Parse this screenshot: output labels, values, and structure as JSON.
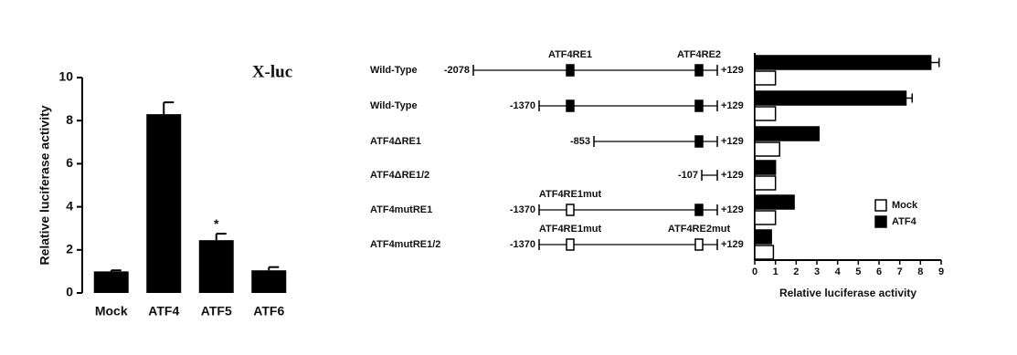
{
  "chart_data": [
    {
      "type": "bar",
      "annotation_label": "X-luc",
      "ylabel": "Relative luciferase activity",
      "categories": [
        "Mock",
        "ATF4",
        "ATF5",
        "ATF6"
      ],
      "values": [
        1.0,
        8.3,
        2.45,
        1.05
      ],
      "errors": [
        0.05,
        0.55,
        0.3,
        0.15
      ],
      "significance": {
        "text": "*",
        "category": "ATF5"
      },
      "color": "#000000",
      "ylim": [
        0,
        10
      ],
      "yticks": [
        0,
        2,
        4,
        6,
        8,
        10
      ]
    },
    {
      "type": "hbar",
      "xlabel": "Relative luciferase activity",
      "categories": [
        "Wild-Type",
        "Wild-Type",
        "ATF4ΔRE1",
        "ATF4ΔRE1/2",
        "ATF4mutRE1",
        "ATF4mutRE1/2"
      ],
      "series": [
        {
          "name": "Mock",
          "color": "#ffffff",
          "values": [
            1.0,
            1.0,
            1.2,
            1.0,
            1.0,
            0.9
          ]
        },
        {
          "name": "ATF4",
          "color": "#000000",
          "values": [
            8.5,
            7.3,
            3.1,
            1.0,
            1.9,
            0.8
          ],
          "errors": [
            0.4,
            0.3,
            0,
            0,
            0,
            0
          ]
        }
      ],
      "xlim": [
        0,
        9
      ],
      "xticks": [
        0,
        1,
        2,
        3,
        4,
        5,
        6,
        7,
        8,
        9
      ],
      "legend": "lower right",
      "constructs": [
        {
          "start": "-2078",
          "end": "+129",
          "re1": "filled",
          "re2": "filled",
          "re1_label": "ATF4RE1",
          "re2_label": "ATF4RE2"
        },
        {
          "start": "-1370",
          "end": "+129",
          "re1": "filled",
          "re2": "filled"
        },
        {
          "start": "-853",
          "end": "+129",
          "re1": null,
          "re2": "filled"
        },
        {
          "start": "-107",
          "end": "+129",
          "re1": null,
          "re2": null
        },
        {
          "start": "-1370",
          "end": "+129",
          "re1": "open",
          "re2": "filled",
          "re1_label": "ATF4RE1mut"
        },
        {
          "start": "-1370",
          "end": "+129",
          "re1": "open",
          "re2": "open",
          "re1_label": "ATF4RE1mut",
          "re2_label": "ATF4RE2mut"
        }
      ]
    }
  ]
}
